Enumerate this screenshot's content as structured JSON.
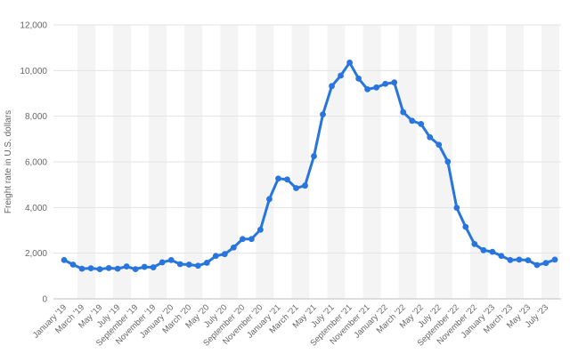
{
  "chart_data": {
    "type": "line",
    "ylabel": "Freight rate in U.S. dollars",
    "ylim": [
      0,
      12000
    ],
    "y_ticks": [
      0,
      2000,
      4000,
      6000,
      8000,
      10000,
      12000
    ],
    "y_tick_labels": [
      "0",
      "2,000",
      "4,000",
      "6,000",
      "8,000",
      "10,000",
      "12,000"
    ],
    "x_tick_labels": [
      "January '19",
      "March '19",
      "May '19",
      "July '19",
      "September '19",
      "November '19",
      "January '20",
      "March '20",
      "May '20",
      "July '20",
      "September '20",
      "November '20",
      "January '21",
      "March '21",
      "May '21",
      "July '21",
      "September '21",
      "November '21",
      "January '22",
      "March '22",
      "May '22",
      "July '22",
      "September '22",
      "November '22",
      "January '23",
      "March '23",
      "May '23",
      "July '23"
    ],
    "grid": "alternating vertical bands",
    "color": "#2876dd",
    "series": [
      {
        "values": [
          1700,
          1500,
          1320,
          1340,
          1300,
          1350,
          1320,
          1420,
          1300,
          1400,
          1380,
          1600,
          1700,
          1520,
          1500,
          1450,
          1580,
          1880,
          1960,
          2250,
          2620,
          2620,
          3030,
          4370,
          5270,
          5230,
          4850,
          4960,
          6250,
          8080,
          9320,
          9780,
          10350,
          9650,
          9180,
          9260,
          9420,
          9480,
          8180,
          7800,
          7660,
          7080,
          6750,
          6010,
          3990,
          3150,
          2400,
          2130,
          2060,
          1880,
          1700,
          1720,
          1690,
          1480,
          1570,
          1720
        ]
      }
    ]
  }
}
